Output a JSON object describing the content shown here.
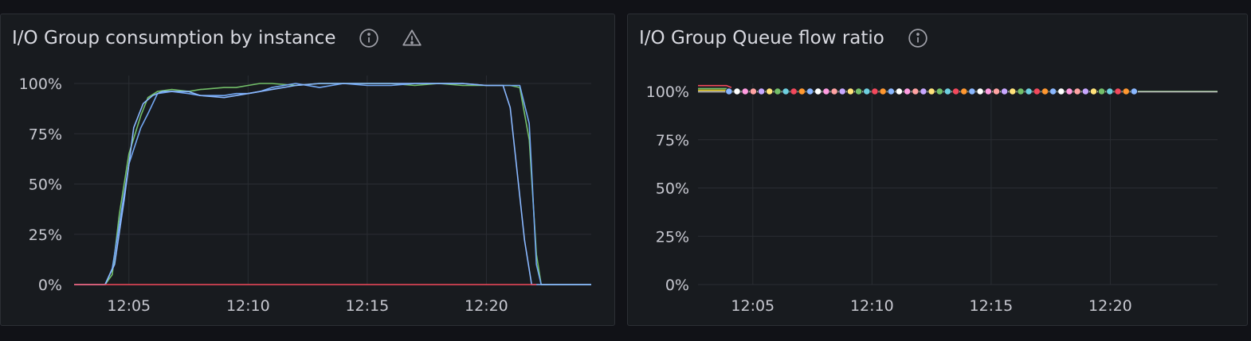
{
  "panels": [
    {
      "title": "I/O Group consumption by instance",
      "icons": [
        "info-icon",
        "warning-icon"
      ]
    },
    {
      "title": "I/O Group Queue flow ratio",
      "icons": [
        "info-icon"
      ]
    }
  ],
  "colors": {
    "background": "#111217",
    "panel": "#181b1f",
    "grid": "#2a2d33",
    "blue": "#73a7f2",
    "green": "#73bf69",
    "red": "#f2495c"
  },
  "chart_data": [
    {
      "type": "line",
      "title": "I/O Group consumption by instance",
      "x_ticks": [
        "12:05",
        "12:10",
        "12:15",
        "12:20"
      ],
      "y_ticks": [
        "0%",
        "25%",
        "50%",
        "75%",
        "100%"
      ],
      "ylim": [
        0,
        100
      ],
      "xlim_minutes": [
        2.7,
        24.4
      ],
      "grid": true,
      "legend": "none",
      "series": [
        {
          "color": "#73bf69",
          "x": [
            2.7,
            4.0,
            4.3,
            4.6,
            5.0,
            5.5,
            5.8,
            6.2,
            6.8,
            7.5,
            8.0,
            9.0,
            9.5,
            10.0,
            10.5,
            11.0,
            12.0,
            13.0,
            14.0,
            15.0,
            16.0,
            17.0,
            18.0,
            19.0,
            20.0,
            21.0,
            21.4,
            21.8,
            22.1,
            22.3,
            24.4
          ],
          "y": [
            0,
            0,
            5,
            35,
            65,
            84,
            93,
            96,
            97,
            96,
            97,
            98,
            98,
            99,
            100,
            100,
            99,
            100,
            100,
            100,
            100,
            99,
            100,
            99,
            99,
            99,
            98,
            72,
            15,
            0,
            0
          ]
        },
        {
          "color": "#73a7f2",
          "x": [
            2.7,
            4.0,
            4.3,
            4.6,
            5.0,
            5.5,
            5.8,
            6.2,
            6.8,
            7.5,
            8.0,
            9.0,
            9.5,
            10.0,
            10.5,
            11.0,
            12.0,
            13.0,
            14.0,
            15.0,
            16.0,
            17.0,
            18.0,
            19.0,
            20.0,
            21.0,
            21.4,
            21.8,
            22.1,
            22.3,
            24.4
          ],
          "y": [
            0,
            0,
            8,
            30,
            60,
            78,
            85,
            95,
            96,
            95,
            94,
            94,
            95,
            95,
            96,
            98,
            100,
            98,
            100,
            99,
            99,
            100,
            100,
            100,
            99,
            99,
            99,
            80,
            10,
            0,
            0
          ]
        },
        {
          "color": "#8ab8ff",
          "x": [
            2.7,
            3.7,
            4.0,
            4.4,
            4.8,
            5.2,
            5.6,
            6.0,
            6.4,
            7.0,
            7.5,
            8.0,
            9.0,
            10.0,
            11.0,
            12.0,
            13.0,
            14.0,
            15.0,
            16.0,
            17.0,
            18.0,
            19.0,
            20.0,
            20.7,
            21.0,
            21.3,
            21.6,
            21.9,
            24.4
          ],
          "y": [
            0,
            0,
            0,
            10,
            42,
            78,
            90,
            94,
            96,
            96,
            96,
            94,
            93,
            95,
            97,
            99,
            100,
            100,
            100,
            100,
            100,
            100,
            100,
            99,
            99,
            88,
            55,
            22,
            0,
            0
          ]
        },
        {
          "color": "#f2495c",
          "x": [
            2.7,
            22.1
          ],
          "y": [
            0,
            0
          ]
        }
      ]
    },
    {
      "type": "line",
      "title": "I/O Group Queue flow ratio",
      "x_ticks": [
        "12:05",
        "12:10",
        "12:15",
        "12:20"
      ],
      "y_ticks": [
        "0%",
        "25%",
        "50%",
        "75%",
        "100%"
      ],
      "ylim": [
        0,
        100
      ],
      "xlim_minutes": [
        2.7,
        24.5
      ],
      "grid": true,
      "legend": "none",
      "series": [
        {
          "color": "#f2495c",
          "x": [
            2.7,
            3.9,
            4.1
          ],
          "y": [
            103,
            103,
            102
          ]
        },
        {
          "color": "#73bf69",
          "x": [
            2.7,
            3.9,
            4.1,
            24.5
          ],
          "y": [
            101.5,
            101.5,
            100,
            100
          ]
        },
        {
          "color": "#fade2a",
          "x": [
            2.7,
            3.9,
            4.1
          ],
          "y": [
            100.6,
            100.6,
            100
          ]
        },
        {
          "color": "#c8c8c8",
          "x": [
            2.7,
            24.5
          ],
          "y": [
            99.8,
            99.8
          ]
        }
      ],
      "markers": {
        "y": 100,
        "x_start": 4.0,
        "x_end": 21.0,
        "count": 51,
        "colors": [
          "#8ab8ff",
          "#ffffff",
          "#ff9ce0",
          "#ffa3a3",
          "#c8a8ff",
          "#ffe27a",
          "#73bf69",
          "#6ed0e0",
          "#f2495c",
          "#ff9830"
        ]
      }
    }
  ]
}
